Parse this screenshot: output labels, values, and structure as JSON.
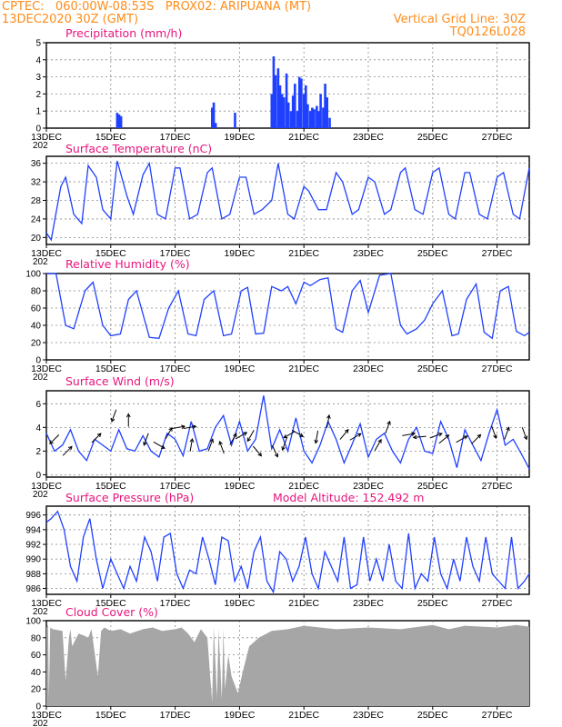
{
  "header": {
    "line1_left": "CPTEC:   060:00W-08:53S   PROX02: ARIPUANA (MT)",
    "line2_left": "13DEC2020 30Z (GMT)",
    "line2_right": "Vertical Grid Line: 30Z",
    "line3_right": "TQ0126L028"
  },
  "colors": {
    "line": "#2040ff",
    "cloud": "#a6a6a6",
    "title": "#e8157d",
    "header": "#ff8c1a"
  },
  "x_axis": {
    "labels": [
      "13DEC",
      "15DEC",
      "17DEC",
      "19DEC",
      "21DEC",
      "23DEC",
      "25DEC",
      "27DEC"
    ],
    "stub": "202"
  },
  "chart_data": [
    {
      "type": "bar",
      "title": "Precipitation (mm/h)",
      "ylim": [
        0,
        5
      ],
      "yticks": [
        "0",
        "1",
        "2",
        "3",
        "4",
        "5"
      ],
      "x": [
        2.2,
        2.26,
        2.32,
        5.15,
        5.2,
        5.26,
        5.86,
        7.0,
        7.06,
        7.12,
        7.2,
        7.26,
        7.32,
        7.38,
        7.46,
        7.52,
        7.6,
        7.66,
        7.72,
        7.8,
        7.86,
        7.92,
        8.0,
        8.06,
        8.12,
        8.2,
        8.26,
        8.32,
        8.4,
        8.46,
        8.52,
        8.6,
        8.66,
        8.72,
        8.8
      ],
      "values": [
        0.9,
        0.8,
        0.7,
        1.2,
        1.5,
        0.3,
        0.9,
        2.0,
        4.2,
        3.1,
        3.5,
        2.5,
        2.0,
        1.8,
        3.2,
        1.5,
        1.0,
        1.9,
        2.6,
        1.0,
        3.0,
        2.9,
        2.0,
        2.5,
        1.4,
        1.0,
        1.2,
        1.1,
        1.3,
        1.0,
        2.0,
        1.2,
        2.6,
        1.8,
        0.6
      ]
    },
    {
      "type": "line",
      "title": "Surface Temperature (nC)",
      "ylim": [
        18.5,
        37.5
      ],
      "yticks": [
        "20",
        "24",
        "28",
        "32",
        "36"
      ],
      "x": [
        0,
        0.15,
        0.45,
        0.6,
        0.85,
        1.1,
        1.3,
        1.55,
        1.75,
        2.0,
        2.2,
        2.5,
        2.7,
        3.0,
        3.2,
        3.45,
        3.7,
        4.0,
        4.15,
        4.45,
        4.7,
        5.0,
        5.15,
        5.45,
        5.7,
        6.0,
        6.2,
        6.45,
        6.7,
        7.0,
        7.2,
        7.5,
        7.7,
        8.0,
        8.15,
        8.45,
        8.7,
        9.0,
        9.2,
        9.5,
        9.7,
        10.0,
        10.2,
        10.5,
        10.7,
        11.0,
        11.15,
        11.45,
        11.7,
        12.0,
        12.2,
        12.5,
        12.7,
        13.0,
        13.15,
        13.45,
        13.7,
        14.0,
        14.2,
        14.5,
        14.7,
        15.0
      ],
      "values": [
        21,
        19.5,
        31,
        33,
        25,
        23,
        35.5,
        33,
        26,
        24,
        36.5,
        29,
        25,
        33.5,
        36,
        25,
        24,
        35,
        35,
        24,
        25,
        34,
        35,
        24,
        25,
        33,
        33,
        25,
        26,
        28,
        36,
        25,
        24,
        31,
        30,
        26,
        26,
        34,
        32,
        25,
        26,
        33,
        32,
        25,
        26,
        34,
        35,
        26,
        25,
        34,
        35,
        25,
        24,
        34,
        34,
        25,
        24,
        33,
        34,
        25,
        24,
        35
      ]
    },
    {
      "type": "line",
      "title": "Relative Humidity (%)",
      "ylim": [
        0,
        100
      ],
      "yticks": [
        "0",
        "20",
        "40",
        "60",
        "80",
        "100"
      ],
      "x": [
        0,
        0.3,
        0.6,
        0.85,
        1.2,
        1.45,
        1.75,
        2.0,
        2.3,
        2.55,
        2.8,
        3.2,
        3.5,
        3.8,
        4.1,
        4.4,
        4.65,
        4.9,
        5.2,
        5.5,
        5.75,
        6.05,
        6.25,
        6.5,
        6.75,
        7.0,
        7.3,
        7.5,
        7.75,
        8.0,
        8.2,
        8.5,
        8.75,
        9.0,
        9.2,
        9.5,
        9.75,
        10.0,
        10.35,
        10.7,
        11.0,
        11.2,
        11.5,
        11.75,
        12.0,
        12.3,
        12.6,
        12.8,
        13.05,
        13.35,
        13.6,
        13.85,
        14.1,
        14.35,
        14.6,
        14.85,
        15.0
      ],
      "values": [
        100,
        100,
        40,
        36,
        80,
        90,
        40,
        28,
        30,
        70,
        80,
        26,
        25,
        60,
        80,
        30,
        28,
        70,
        80,
        28,
        30,
        80,
        84,
        30,
        31,
        85,
        80,
        85,
        65,
        90,
        86,
        93,
        95,
        36,
        32,
        80,
        92,
        55,
        98,
        100,
        40,
        30,
        36,
        46,
        65,
        80,
        28,
        30,
        70,
        88,
        32,
        25,
        80,
        85,
        33,
        28,
        32
      ]
    },
    {
      "type": "line",
      "title": "Surface Wind (m/s)",
      "ylim": [
        -0.2,
        7.1
      ],
      "yticks": [
        "0",
        "2",
        "4",
        "6"
      ],
      "x": [
        0,
        0.25,
        0.5,
        0.75,
        1.0,
        1.25,
        1.5,
        1.75,
        2.0,
        2.25,
        2.5,
        2.75,
        3.0,
        3.25,
        3.5,
        3.75,
        4.0,
        4.25,
        4.5,
        4.75,
        5.0,
        5.25,
        5.5,
        5.75,
        6.0,
        6.25,
        6.5,
        6.75,
        7.0,
        7.25,
        7.5,
        7.75,
        8.0,
        8.25,
        8.5,
        8.75,
        9.0,
        9.25,
        9.5,
        9.75,
        10.0,
        10.25,
        10.5,
        10.75,
        11.0,
        11.25,
        11.5,
        11.75,
        12.0,
        12.25,
        12.5,
        12.75,
        13.0,
        13.25,
        13.5,
        13.75,
        14.0,
        14.25,
        14.5,
        14.75,
        15.0
      ],
      "values": [
        3.5,
        2.0,
        2.5,
        3.8,
        2.0,
        1.2,
        3.0,
        2.5,
        2.0,
        3.8,
        2.2,
        2.0,
        3.3,
        2.0,
        1.5,
        3.5,
        3.0,
        1.6,
        4.5,
        2.0,
        2.2,
        4.0,
        5.0,
        2.5,
        4.5,
        2.0,
        3.0,
        6.7,
        2.2,
        3.8,
        2.0,
        4.8,
        2.0,
        1.0,
        2.5,
        4.5,
        3.0,
        1.0,
        2.6,
        4.3,
        1.5,
        3.0,
        3.5,
        2.0,
        1.0,
        3.0,
        4.0,
        2.0,
        1.8,
        4.5,
        3.0,
        0.6,
        3.8,
        2.5,
        1.2,
        3.5,
        5.5,
        2.5,
        3.0,
        1.8,
        0.5
      ]
    },
    {
      "type": "line",
      "title": "Surface Pressure (hPa)",
      "annotation": "Model Altitude: 152.492 m",
      "ylim": [
        985.2,
        997.2
      ],
      "yticks": [
        "986",
        "988",
        "990",
        "992",
        "994",
        "996"
      ],
      "x": [
        0,
        0.15,
        0.35,
        0.55,
        0.75,
        0.95,
        1.15,
        1.35,
        1.55,
        1.75,
        2.0,
        2.2,
        2.4,
        2.6,
        2.8,
        3.05,
        3.25,
        3.45,
        3.65,
        3.85,
        4.05,
        4.25,
        4.45,
        4.65,
        4.85,
        5.05,
        5.25,
        5.45,
        5.65,
        5.85,
        6.05,
        6.25,
        6.45,
        6.65,
        6.85,
        7.05,
        7.25,
        7.45,
        7.65,
        7.85,
        8.05,
        8.25,
        8.45,
        8.65,
        8.85,
        9.05,
        9.25,
        9.45,
        9.65,
        9.85,
        10.05,
        10.25,
        10.45,
        10.65,
        10.85,
        11.05,
        11.25,
        11.45,
        11.65,
        11.85,
        12.05,
        12.25,
        12.45,
        12.65,
        12.85,
        13.05,
        13.25,
        13.45,
        13.65,
        13.85,
        14.05,
        14.25,
        14.45,
        14.65,
        14.85,
        15.0
      ],
      "values": [
        995,
        995.5,
        996.5,
        994,
        989,
        987,
        993,
        995.5,
        990,
        986,
        990,
        988,
        986,
        989,
        987,
        993,
        991,
        987,
        993,
        993.5,
        988,
        986,
        988.5,
        988,
        993,
        990,
        986.5,
        993,
        992.5,
        987,
        989,
        986,
        991,
        993,
        987,
        985.5,
        991,
        990,
        987,
        989,
        993,
        988,
        986,
        991,
        989,
        987,
        993,
        986,
        986.5,
        993,
        987,
        990,
        987,
        992,
        987,
        986,
        993.5,
        986,
        988,
        987,
        993,
        988,
        986,
        990,
        987,
        993,
        989,
        987,
        993,
        988,
        987,
        986,
        993,
        986,
        987,
        988
      ]
    },
    {
      "type": "area",
      "title": "Cloud Cover (%)",
      "ylim": [
        0,
        100
      ],
      "yticks": [
        "0",
        "20",
        "40",
        "60",
        "80",
        "100"
      ],
      "x": [
        0,
        0.05,
        0.08,
        0.12,
        0.2,
        0.5,
        0.6,
        0.7,
        0.75,
        0.8,
        1.0,
        1.2,
        1.3,
        1.4,
        1.6,
        1.7,
        1.8,
        2.0,
        2.3,
        2.6,
        3.0,
        3.3,
        3.6,
        4.0,
        4.2,
        4.4,
        4.6,
        4.8,
        5.0,
        5.1,
        5.15,
        5.2,
        5.3,
        5.35,
        5.45,
        5.5,
        5.55,
        5.65,
        5.75,
        5.85,
        5.95,
        6.1,
        6.3,
        6.6,
        7.0,
        7.5,
        8.0,
        9.0,
        10.0,
        11.0,
        12.0,
        12.5,
        13.0,
        14.0,
        14.6,
        15.0
      ],
      "values": [
        92,
        95,
        10,
        92,
        90,
        88,
        30,
        80,
        90,
        70,
        85,
        82,
        80,
        90,
        35,
        88,
        92,
        88,
        90,
        85,
        90,
        92,
        88,
        90,
        92,
        85,
        75,
        90,
        80,
        30,
        5,
        92,
        10,
        90,
        8,
        90,
        20,
        60,
        35,
        25,
        15,
        40,
        70,
        80,
        88,
        90,
        94,
        90,
        92,
        90,
        95,
        90,
        94,
        92,
        95,
        93
      ]
    }
  ],
  "wind_arrows": [
    {
      "x": 0.25,
      "y": 3.0,
      "deg": 225
    },
    {
      "x": 0.65,
      "y": 2.0,
      "deg": 45
    },
    {
      "x": 1.55,
      "y": 3.1,
      "deg": 45
    },
    {
      "x": 2.1,
      "y": 5.0,
      "deg": 200
    },
    {
      "x": 2.55,
      "y": 4.6,
      "deg": 0
    },
    {
      "x": 3.1,
      "y": 3.0,
      "deg": 200
    },
    {
      "x": 3.5,
      "y": 2.5,
      "deg": 120
    },
    {
      "x": 3.8,
      "y": 3.5,
      "deg": 30
    },
    {
      "x": 4.1,
      "y": 4.0,
      "deg": 80
    },
    {
      "x": 4.45,
      "y": 4.0,
      "deg": 80
    },
    {
      "x": 4.5,
      "y": 2.5,
      "deg": 10
    },
    {
      "x": 5.1,
      "y": 2.5,
      "deg": 20
    },
    {
      "x": 5.45,
      "y": 2.3,
      "deg": 340
    },
    {
      "x": 5.8,
      "y": 3.0,
      "deg": 30
    },
    {
      "x": 6.05,
      "y": 3.3,
      "deg": 60
    },
    {
      "x": 6.35,
      "y": 3.3,
      "deg": 210
    },
    {
      "x": 6.55,
      "y": 2.0,
      "deg": 140
    },
    {
      "x": 7.1,
      "y": 2.0,
      "deg": 155
    },
    {
      "x": 7.4,
      "y": 2.6,
      "deg": 200
    },
    {
      "x": 7.55,
      "y": 3.4,
      "deg": 240
    },
    {
      "x": 7.8,
      "y": 3.5,
      "deg": 120
    },
    {
      "x": 8.4,
      "y": 3.2,
      "deg": 190
    },
    {
      "x": 8.75,
      "y": 4.5,
      "deg": 10
    },
    {
      "x": 9.25,
      "y": 3.4,
      "deg": 40
    },
    {
      "x": 9.6,
      "y": 3.2,
      "deg": 60
    },
    {
      "x": 10.3,
      "y": 2.5,
      "deg": 30
    },
    {
      "x": 10.6,
      "y": 4.0,
      "deg": 20
    },
    {
      "x": 11.25,
      "y": 3.4,
      "deg": 80
    },
    {
      "x": 11.6,
      "y": 3.2,
      "deg": 265
    },
    {
      "x": 12.1,
      "y": 3.3,
      "deg": 70
    },
    {
      "x": 12.35,
      "y": 3.0,
      "deg": 50
    },
    {
      "x": 12.9,
      "y": 3.0,
      "deg": 60
    },
    {
      "x": 13.35,
      "y": 3.0,
      "deg": 45
    },
    {
      "x": 13.9,
      "y": 3.6,
      "deg": 160
    },
    {
      "x": 14.3,
      "y": 3.5,
      "deg": 20
    },
    {
      "x": 14.85,
      "y": 3.5,
      "deg": 160
    }
  ]
}
